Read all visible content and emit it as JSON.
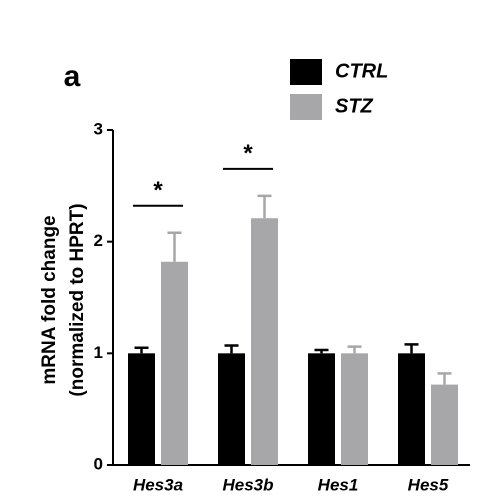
{
  "chart_data": {
    "type": "bar",
    "panel_label": "a",
    "y_label": [
      "mRNA fold change",
      "(normalized to HPRT)"
    ],
    "categories": [
      "Hes3a",
      "Hes3b",
      "Hes1",
      "Hes5"
    ],
    "series": [
      {
        "name": "CTRL",
        "color": "#000000",
        "values": [
          1.0,
          1.0,
          1.0,
          1.0
        ],
        "errors": [
          0.05,
          0.07,
          0.03,
          0.08
        ]
      },
      {
        "name": "STZ",
        "color": "#a7a7a9",
        "values": [
          1.82,
          2.21,
          1.0,
          0.72
        ],
        "errors": [
          0.26,
          0.2,
          0.06,
          0.1
        ]
      }
    ],
    "ylim": [
      0,
      3
    ],
    "yticks": [
      0,
      1,
      2,
      3
    ],
    "annotations": [
      {
        "text": "*",
        "category": "Hes3a"
      },
      {
        "text": "*",
        "category": "Hes3b"
      }
    ]
  }
}
